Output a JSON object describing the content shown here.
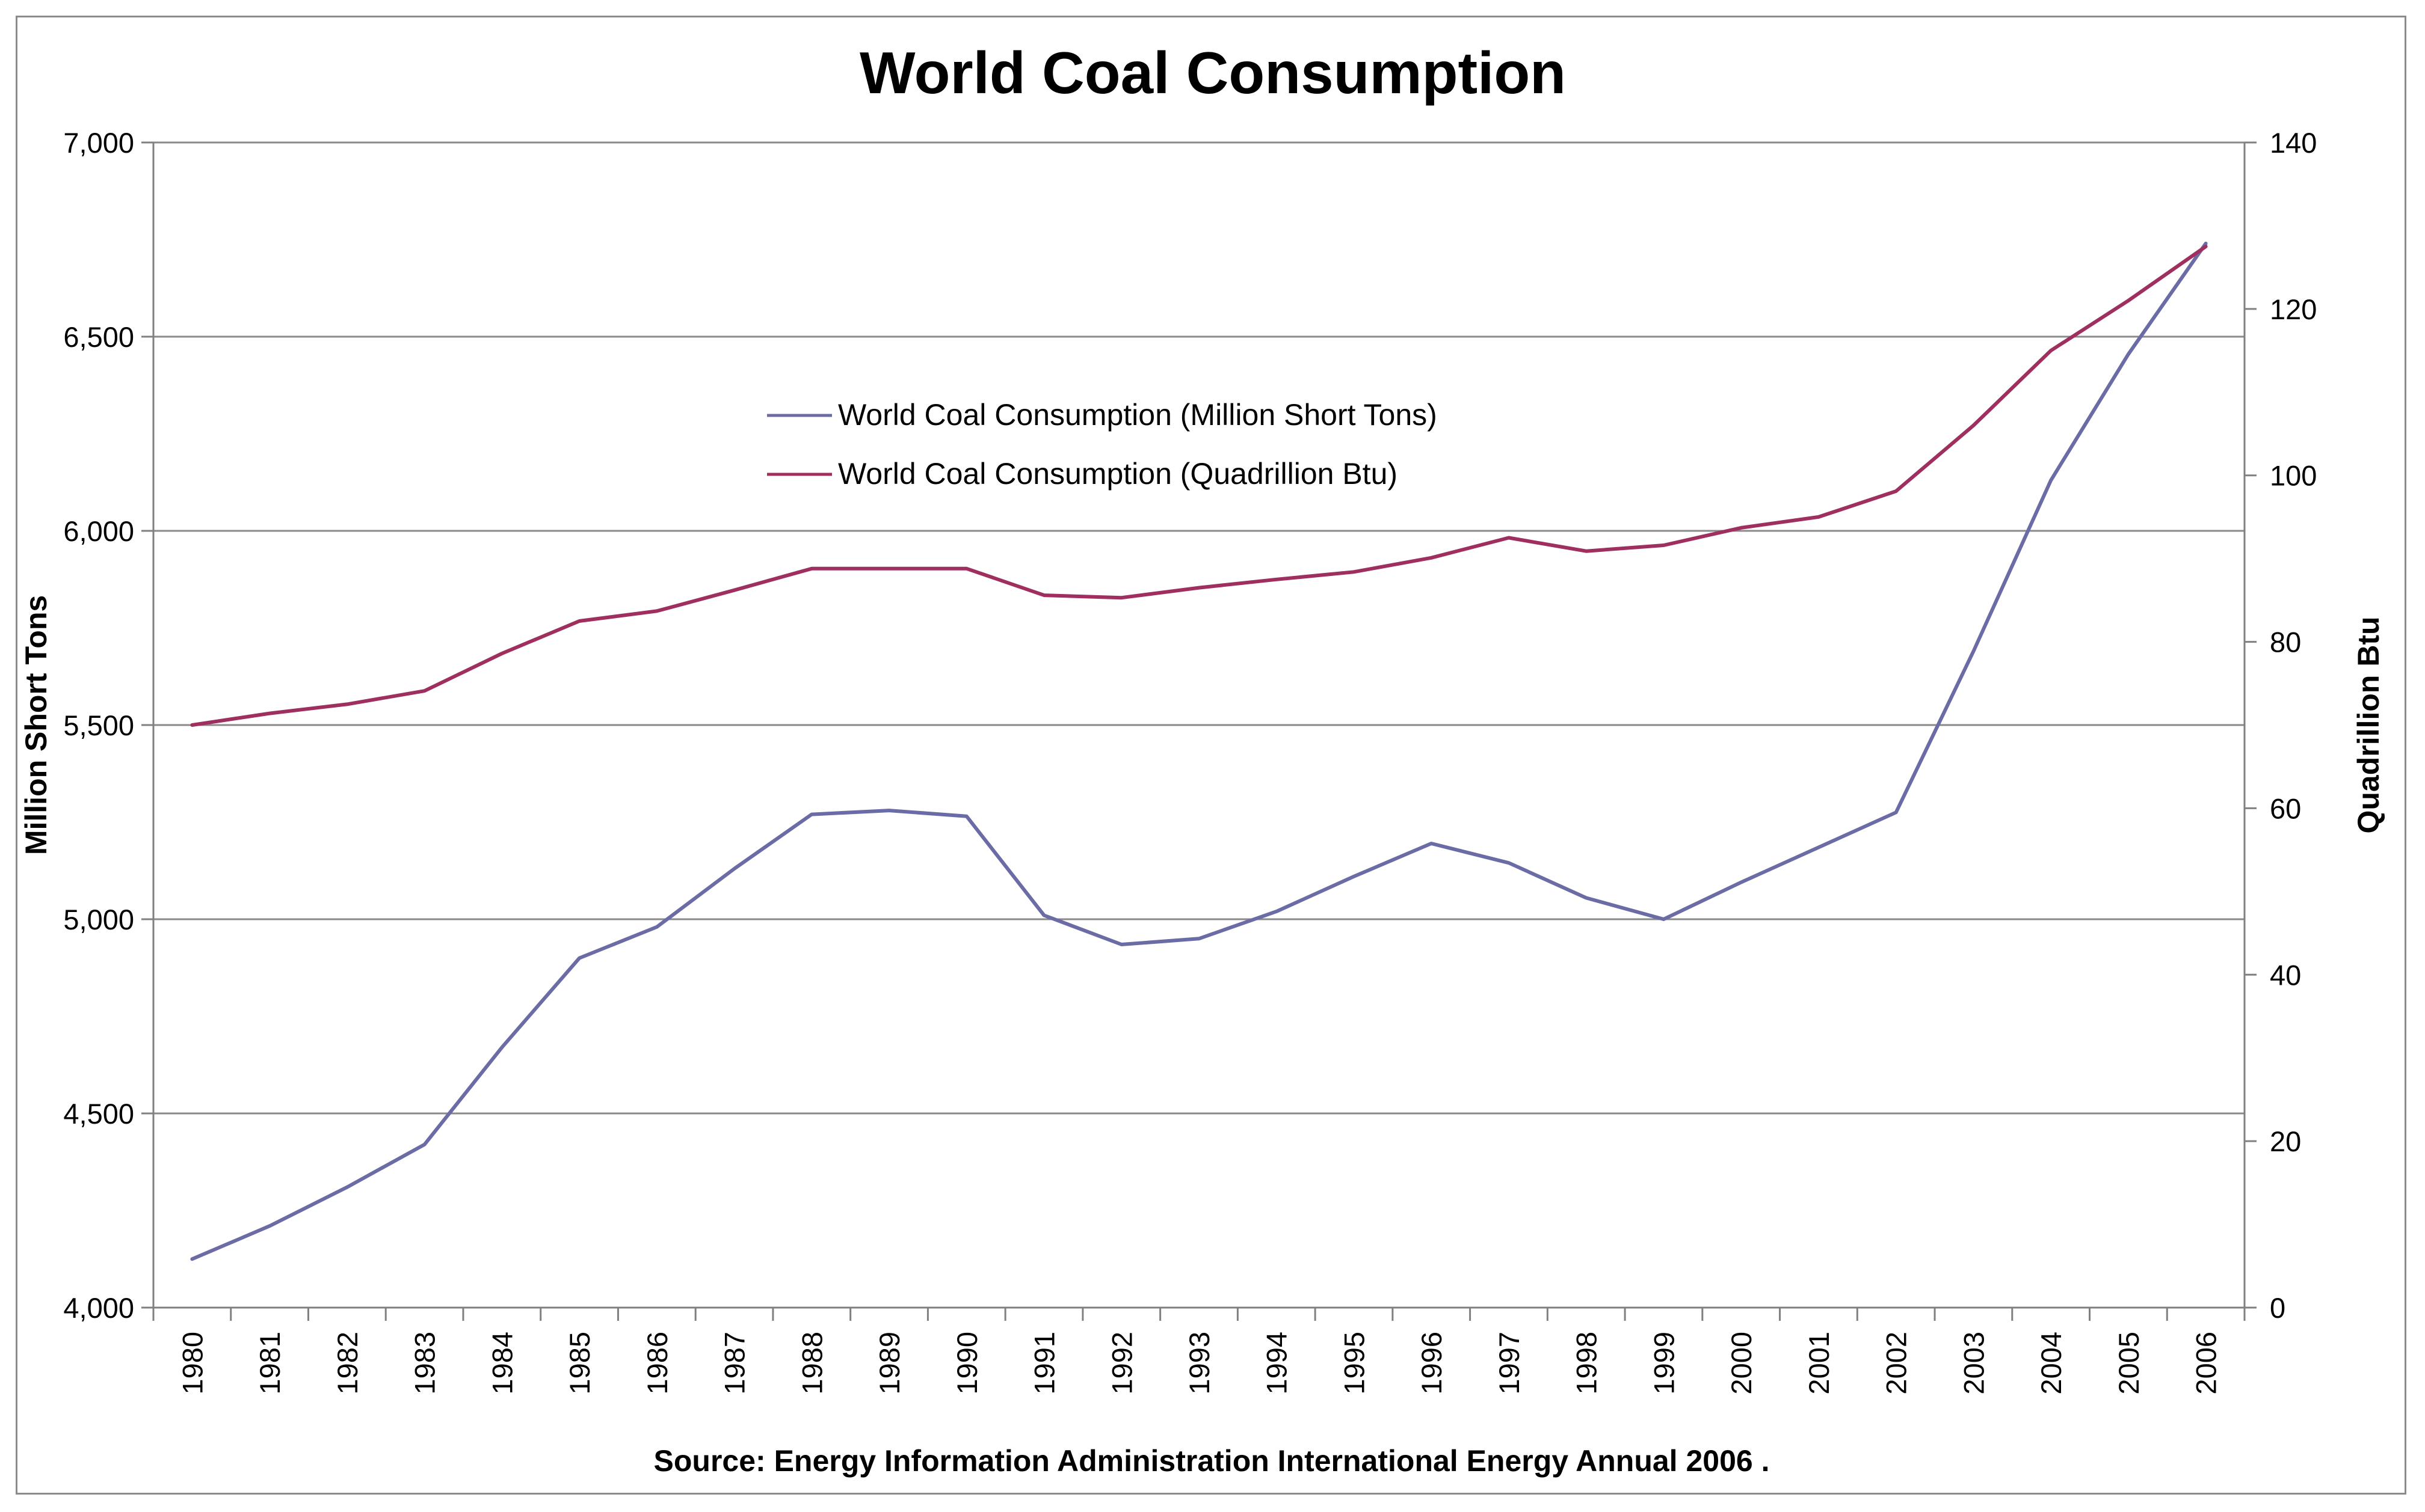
{
  "chart_data": {
    "type": "line",
    "title": "World Coal Consumption",
    "xlabel": "",
    "ylabel": "Million Short Tons",
    "y2label": "Quadrillion Btu",
    "source": "Source: Energy Information Administration  International Energy Annual 2006 .",
    "categories": [
      "1980",
      "1981",
      "1982",
      "1983",
      "1984",
      "1985",
      "1986",
      "1987",
      "1988",
      "1989",
      "1990",
      "1991",
      "1992",
      "1993",
      "1994",
      "1995",
      "1996",
      "1997",
      "1998",
      "1999",
      "2000",
      "2001",
      "2002",
      "2003",
      "2004",
      "2005",
      "2006"
    ],
    "ylim": [
      4000,
      7000
    ],
    "y2lim": [
      0,
      140
    ],
    "yticks": [
      "4,000",
      "4,500",
      "5,000",
      "5,500",
      "6,000",
      "6,500",
      "7,000"
    ],
    "y2ticks": [
      "0",
      "20",
      "40",
      "60",
      "80",
      "100",
      "120",
      "140"
    ],
    "grid": true,
    "legend_position": "upper-center",
    "series": [
      {
        "name": "World Coal Consumption (Million Short Tons)",
        "axis": "left",
        "color": "#6b6ba6",
        "values": [
          4125,
          4210,
          4310,
          4420,
          4670,
          4900,
          4980,
          5130,
          5270,
          5280,
          5265,
          5010,
          4935,
          4950,
          5020,
          5110,
          5195,
          5145,
          5055,
          5000,
          5095,
          5185,
          5275,
          5690,
          6130,
          6455,
          6740
        ]
      },
      {
        "name": "World Coal Consumption (Quadrillion Btu)",
        "axis": "right",
        "color": "#9e2f5e",
        "values": [
          70.0,
          71.4,
          72.5,
          74.1,
          78.6,
          82.5,
          83.7,
          86.2,
          88.8,
          88.8,
          88.8,
          85.6,
          85.3,
          86.5,
          87.5,
          88.4,
          90.1,
          92.5,
          90.9,
          91.6,
          93.7,
          95.0,
          98.1,
          106.0,
          115.0,
          121.0,
          127.5
        ]
      }
    ]
  }
}
